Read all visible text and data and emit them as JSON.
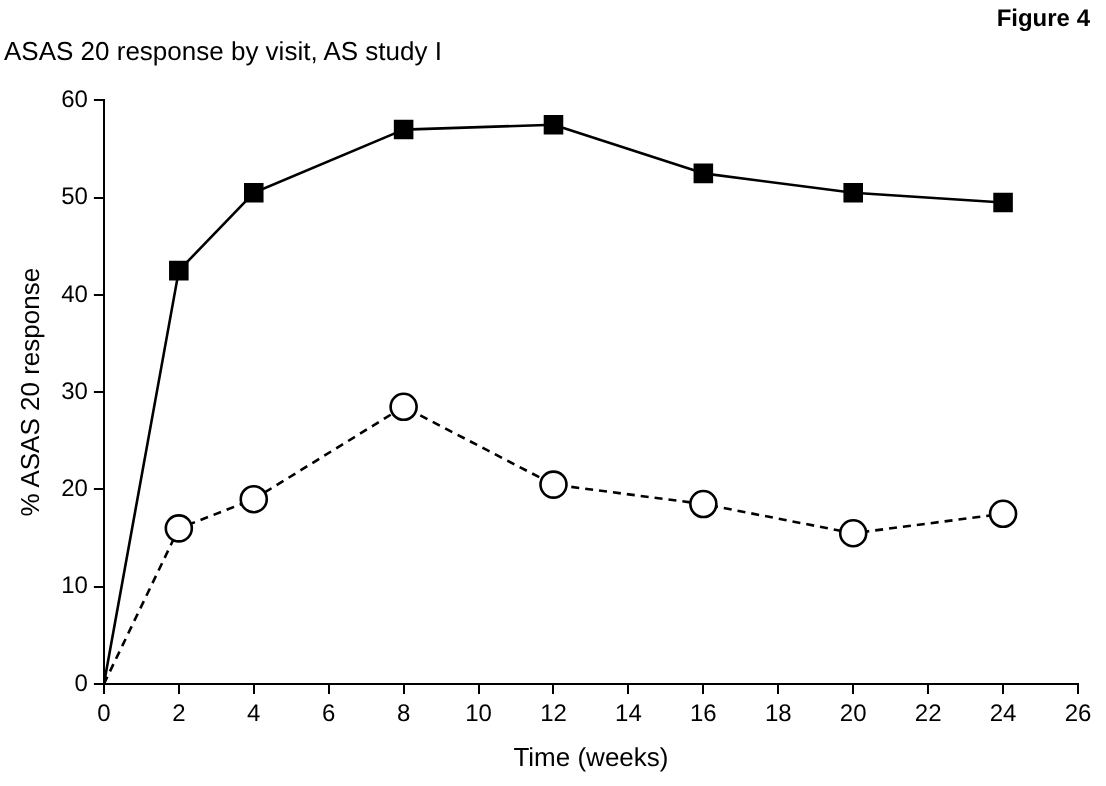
{
  "chart_data": {
    "type": "line",
    "subtitle": "ASAS 20 response by visit, AS study I",
    "annotations": [
      "Figure 4"
    ],
    "xlabel": "Time (weeks)",
    "ylabel": "% ASAS 20 response",
    "x": [
      0,
      2,
      4,
      8,
      12,
      16,
      20,
      24
    ],
    "series": [
      {
        "color": "#000000",
        "marker": "square",
        "line_style": "solid",
        "values": [
          0,
          42.5,
          50.5,
          57,
          57.5,
          52.5,
          50.5,
          49.5
        ]
      },
      {
        "color": "#000000",
        "marker": "circle",
        "line_style": "dashed",
        "values": [
          0,
          16,
          19,
          28.5,
          20.5,
          18.5,
          15.5,
          17.5
        ]
      }
    ],
    "xlim": [
      0,
      26
    ],
    "xticks": [
      0,
      2,
      4,
      6,
      8,
      10,
      12,
      14,
      16,
      18,
      20,
      22,
      24,
      26
    ],
    "ylim": [
      0,
      60
    ],
    "yticks": [
      0,
      10,
      20,
      30,
      40,
      50,
      60
    ],
    "grid": false,
    "legend": false
  }
}
